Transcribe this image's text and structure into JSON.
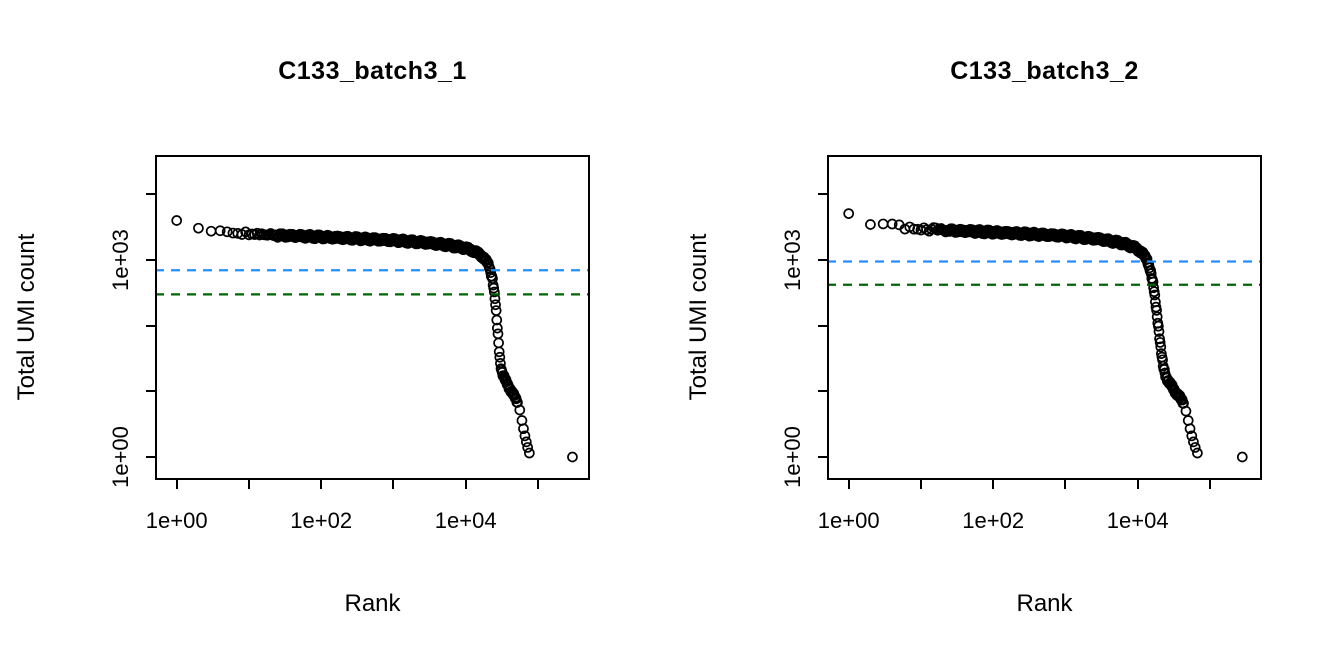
{
  "figure": {
    "background": "#ffffff",
    "axis_color": "#000000"
  },
  "chart_data": [
    {
      "type": "scatter",
      "title": "C133_batch3_1",
      "xlabel": "Rank",
      "ylabel": "Total UMI count",
      "x_scale": "log10",
      "y_scale": "log10",
      "xlim_log10": [
        -0.3,
        5.72
      ],
      "ylim_log10": [
        -0.35,
        4.6
      ],
      "x_ticks": [
        {
          "log10": 0,
          "label": "1e+00"
        },
        {
          "log10": 1,
          "label": ""
        },
        {
          "log10": 2,
          "label": "1e+02"
        },
        {
          "log10": 3,
          "label": ""
        },
        {
          "log10": 4,
          "label": "1e+04"
        },
        {
          "log10": 5,
          "label": ""
        }
      ],
      "y_ticks": [
        {
          "log10": 0,
          "label": "1e+00"
        },
        {
          "log10": 1,
          "label": ""
        },
        {
          "log10": 2,
          "label": ""
        },
        {
          "log10": 3,
          "label": "1e+03"
        },
        {
          "log10": 4,
          "label": ""
        }
      ],
      "hlines": [
        {
          "name": "knee-threshold",
          "value": 700,
          "color": "#1E90FF",
          "dash": true
        },
        {
          "name": "inflection-threshold",
          "value": 300,
          "color": "#006400",
          "dash": true
        }
      ],
      "curve_anchors": [
        [
          1,
          4000
        ],
        [
          2,
          2950
        ],
        [
          3,
          2820
        ],
        [
          5,
          2680
        ],
        [
          8,
          2560
        ],
        [
          15,
          2440
        ],
        [
          30,
          2360
        ],
        [
          60,
          2300
        ],
        [
          100,
          2250
        ],
        [
          300,
          2130
        ],
        [
          1000,
          2000
        ],
        [
          3000,
          1830
        ],
        [
          6000,
          1680
        ],
        [
          10000,
          1520
        ],
        [
          14000,
          1320
        ],
        [
          18000,
          1080
        ],
        [
          21000,
          820
        ],
        [
          23500,
          520
        ],
        [
          25500,
          250
        ],
        [
          27000,
          115
        ],
        [
          28500,
          55
        ],
        [
          30000,
          28
        ],
        [
          32000,
          19
        ],
        [
          35000,
          15
        ],
        [
          40000,
          11.5
        ],
        [
          46000,
          8.8
        ],
        [
          52000,
          6.8
        ]
      ],
      "dense_max_rank": 52000,
      "tail_points": [
        [
          56000,
          5.2
        ],
        [
          60000,
          3.6
        ],
        [
          63000,
          2.7
        ],
        [
          66000,
          2.1
        ],
        [
          69000,
          1.7
        ],
        [
          72000,
          1.4
        ],
        [
          76000,
          1.15
        ],
        [
          300000,
          1
        ]
      ],
      "marker": {
        "shape": "open-circle",
        "radius": 4.5,
        "stroke": "#000000",
        "line_width": 1.7
      }
    },
    {
      "type": "scatter",
      "title": "C133_batch3_2",
      "xlabel": "Rank",
      "ylabel": "Total UMI count",
      "x_scale": "log10",
      "y_scale": "log10",
      "xlim_log10": [
        -0.3,
        5.72
      ],
      "ylim_log10": [
        -0.35,
        4.6
      ],
      "x_ticks": [
        {
          "log10": 0,
          "label": "1e+00"
        },
        {
          "log10": 1,
          "label": ""
        },
        {
          "log10": 2,
          "label": "1e+02"
        },
        {
          "log10": 3,
          "label": ""
        },
        {
          "log10": 4,
          "label": "1e+04"
        },
        {
          "log10": 5,
          "label": ""
        }
      ],
      "y_ticks": [
        {
          "log10": 0,
          "label": "1e+00"
        },
        {
          "log10": 1,
          "label": ""
        },
        {
          "log10": 2,
          "label": ""
        },
        {
          "log10": 3,
          "label": "1e+03"
        },
        {
          "log10": 4,
          "label": ""
        }
      ],
      "hlines": [
        {
          "name": "knee-threshold",
          "value": 950,
          "color": "#1E90FF",
          "dash": true
        },
        {
          "name": "inflection-threshold",
          "value": 420,
          "color": "#006400",
          "dash": true
        }
      ],
      "curve_anchors": [
        [
          1,
          5100
        ],
        [
          2,
          3600
        ],
        [
          3,
          3400
        ],
        [
          5,
          3200
        ],
        [
          8,
          3050
        ],
        [
          15,
          2900
        ],
        [
          30,
          2800
        ],
        [
          60,
          2720
        ],
        [
          100,
          2650
        ],
        [
          300,
          2500
        ],
        [
          1000,
          2330
        ],
        [
          3000,
          2080
        ],
        [
          6000,
          1820
        ],
        [
          9000,
          1560
        ],
        [
          11500,
          1300
        ],
        [
          13500,
          1000
        ],
        [
          15000,
          700
        ],
        [
          16500,
          400
        ],
        [
          18000,
          190
        ],
        [
          19500,
          90
        ],
        [
          21000,
          42
        ],
        [
          22500,
          24
        ],
        [
          24500,
          17
        ],
        [
          28000,
          13
        ],
        [
          33000,
          10
        ],
        [
          38000,
          8.2
        ],
        [
          43000,
          6.6
        ]
      ],
      "dense_max_rank": 43000,
      "tail_points": [
        [
          46500,
          5
        ],
        [
          50000,
          3.6
        ],
        [
          53000,
          2.7
        ],
        [
          56000,
          2.1
        ],
        [
          59000,
          1.7
        ],
        [
          62500,
          1.4
        ],
        [
          67000,
          1.15
        ],
        [
          280000,
          1
        ]
      ],
      "marker": {
        "shape": "open-circle",
        "radius": 4.5,
        "stroke": "#000000",
        "line_width": 1.7
      }
    }
  ]
}
